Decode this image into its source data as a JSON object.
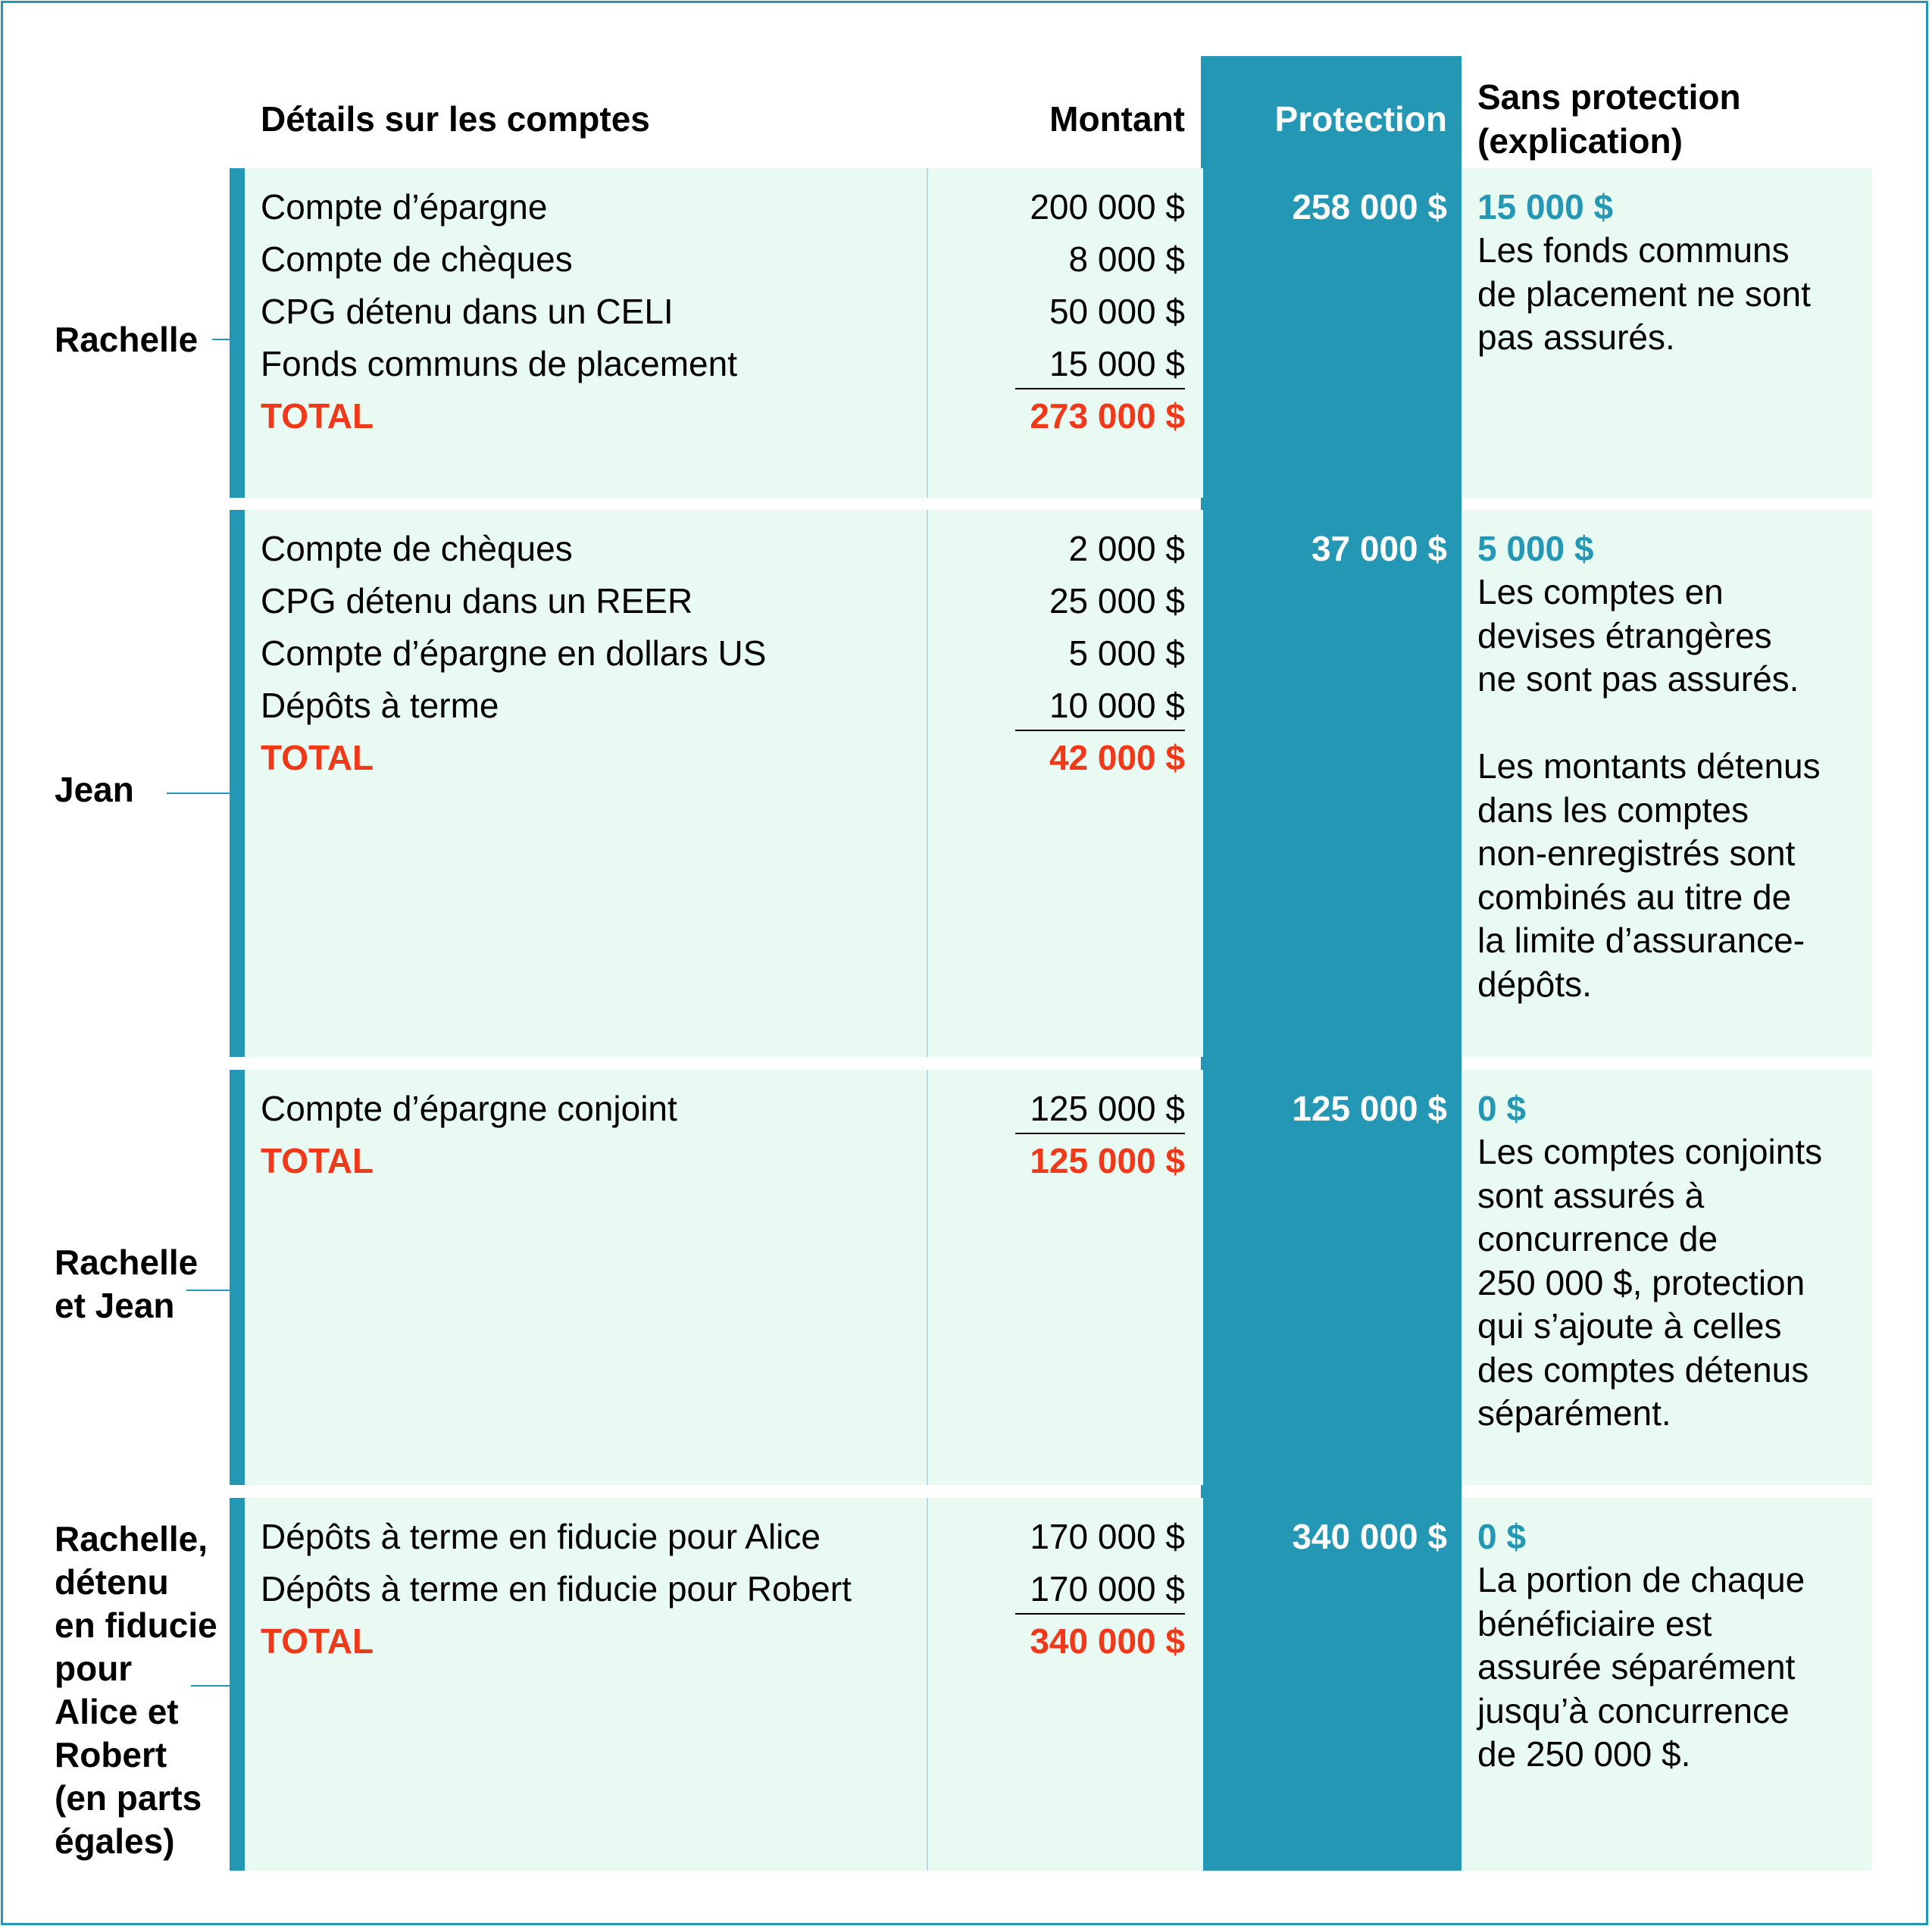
{
  "header": {
    "details": "Détails sur les comptes",
    "amount": "Montant",
    "protection": "Protection",
    "unprotected": "Sans protection\n(explication)"
  },
  "colors": {
    "accent": "#2397b4",
    "panel": "#e8faf1",
    "total": "#f0381a"
  },
  "groups": [
    {
      "owner": "Rachelle",
      "rows": [
        {
          "label": "Compte d’épargne",
          "amount": "200 000 $"
        },
        {
          "label": "Compte de chèques",
          "amount": "8 000 $"
        },
        {
          "label": "CPG détenu dans un CELI",
          "amount": "50 000 $"
        },
        {
          "label": "Fonds communs de placement",
          "amount": "15 000 $"
        }
      ],
      "total_label": "TOTAL",
      "total_amount": "273 000 $",
      "protection": "258 000 $",
      "unprotected_amount": "15 000 $",
      "explanation": "Les fonds communs\nde placement ne sont\npas assurés."
    },
    {
      "owner": "Jean",
      "rows": [
        {
          "label": "Compte de chèques",
          "amount": "2 000 $"
        },
        {
          "label": "CPG détenu dans un REER",
          "amount": "25 000 $"
        },
        {
          "label": "Compte d’épargne en dollars US",
          "amount": "5 000 $"
        },
        {
          "label": "Dépôts à terme",
          "amount": "10 000 $"
        }
      ],
      "total_label": "TOTAL",
      "total_amount": "42 000 $",
      "protection": "37 000 $",
      "unprotected_amount": "5 000 $",
      "explanation": "Les comptes en\ndevises étrangères\nne sont pas assurés.\n\nLes montants détenus\ndans les comptes\nnon-enregistrés sont\ncombinés au titre de\nla limite d’assurance-\ndépôts."
    },
    {
      "owner": "Rachelle\net Jean",
      "rows": [
        {
          "label": "Compte d’épargne conjoint",
          "amount": "125 000 $"
        }
      ],
      "total_label": "TOTAL",
      "total_amount": "125 000 $",
      "protection": "125 000 $",
      "unprotected_amount": "0 $",
      "explanation": "Les comptes conjoints\nsont assurés à\nconcurrence de\n250 000 $, protection\nqui s’ajoute à celles\ndes comptes détenus\nséparément."
    },
    {
      "owner": "Rachelle,\ndétenu\nen fiducie\npour\nAlice et\nRobert\n(en parts\négales)",
      "rows": [
        {
          "label": "Dépôts à terme en fiducie pour Alice",
          "amount": "170 000 $"
        },
        {
          "label": "Dépôts à terme en fiducie pour Robert",
          "amount": "170 000 $"
        }
      ],
      "total_label": "TOTAL",
      "total_amount": "340 000 $",
      "protection": "340 000 $",
      "unprotected_amount": "0 $",
      "explanation": "La portion de chaque\nbénéficiaire est\nassurée séparément\njusqu’à concurrence\nde 250 000 $."
    }
  ]
}
